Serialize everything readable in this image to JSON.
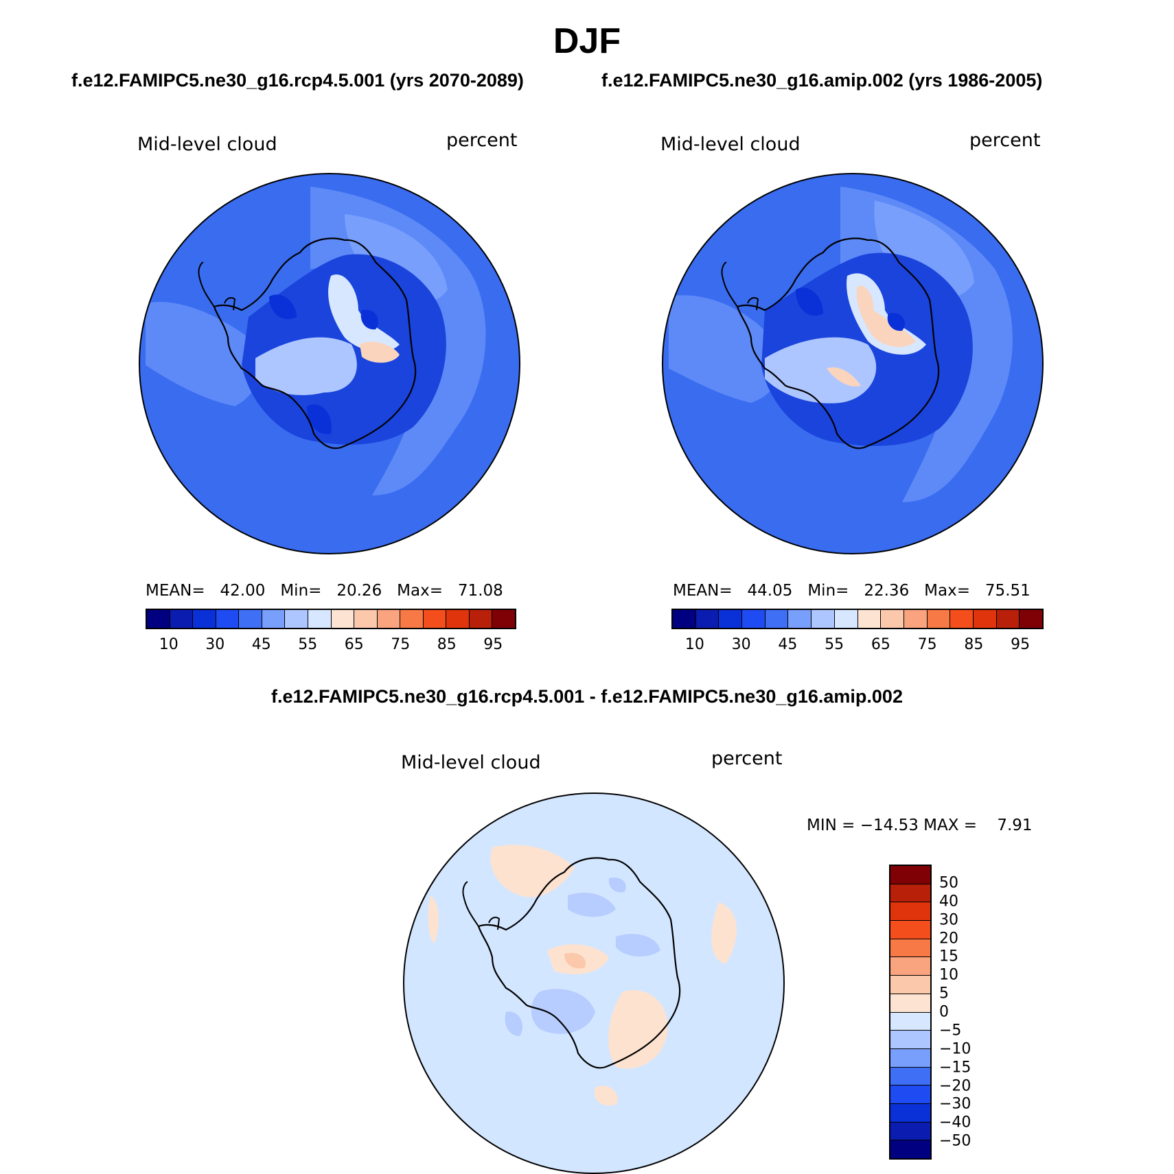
{
  "title": "DJF",
  "colors": {
    "map_blue": "#3a6cf0",
    "map_light_blue": "#7aa3ff",
    "map_dark_blue": "#1a44dc",
    "map_warm": "#fad4bd",
    "diff_bg": "#d3e6ff",
    "diff_warm": "#fde2d0",
    "diff_cool": "#b7ccff",
    "coast": "#000000"
  },
  "panels": [
    {
      "case": "f.e12.FAMIPC5.ne30_g16.rcp4.5.001 (yrs 2070-2089)",
      "variable": "Mid-level cloud",
      "units": "percent",
      "stats": {
        "mean_label": "MEAN=",
        "mean": "42.00",
        "min_label": "Min=",
        "min": "20.26",
        "max_label": "Max=",
        "max": "71.08"
      }
    },
    {
      "case": "f.e12.FAMIPC5.ne30_g16.amip.002 (yrs 1986-2005)",
      "variable": "Mid-level cloud",
      "units": "percent",
      "stats": {
        "mean_label": "MEAN=",
        "mean": "44.05",
        "min_label": "Min=",
        "min": "22.36",
        "max_label": "Max=",
        "max": "75.51"
      }
    }
  ],
  "colorbar": {
    "colors": [
      "#000080",
      "#0a1db0",
      "#0a30d8",
      "#1f4cf2",
      "#3f6ff5",
      "#789ffb",
      "#aec6ff",
      "#d6e7ff",
      "#fde4d2",
      "#fbc8ac",
      "#f9a47f",
      "#f77a46",
      "#f54e1d",
      "#e0340c",
      "#b8200a",
      "#7f0005"
    ],
    "tick_labels": [
      "10",
      "30",
      "45",
      "55",
      "65",
      "75",
      "85",
      "95"
    ]
  },
  "difference": {
    "title": "f.e12.FAMIPC5.ne30_g16.rcp4.5.001 - f.e12.FAMIPC5.ne30_g16.amip.002",
    "variable": "Mid-level cloud",
    "units": "percent",
    "minmax_text": "MIN = −14.53 MAX =    7.91",
    "colorbar": {
      "colors_top_to_bottom": [
        "#7f0005",
        "#b8200a",
        "#e0340c",
        "#f54e1d",
        "#f77a46",
        "#f9a47f",
        "#fbc8ac",
        "#fde4d2",
        "#d6e7ff",
        "#aec6ff",
        "#789ffb",
        "#3f6ff5",
        "#1f4cf2",
        "#0a30d8",
        "#0a1db0",
        "#000080"
      ],
      "tick_labels": [
        "50",
        "40",
        "30",
        "20",
        "15",
        "10",
        "5",
        "0",
        "−5",
        "−10",
        "−15",
        "−20",
        "−30",
        "−40",
        "−50"
      ]
    }
  }
}
